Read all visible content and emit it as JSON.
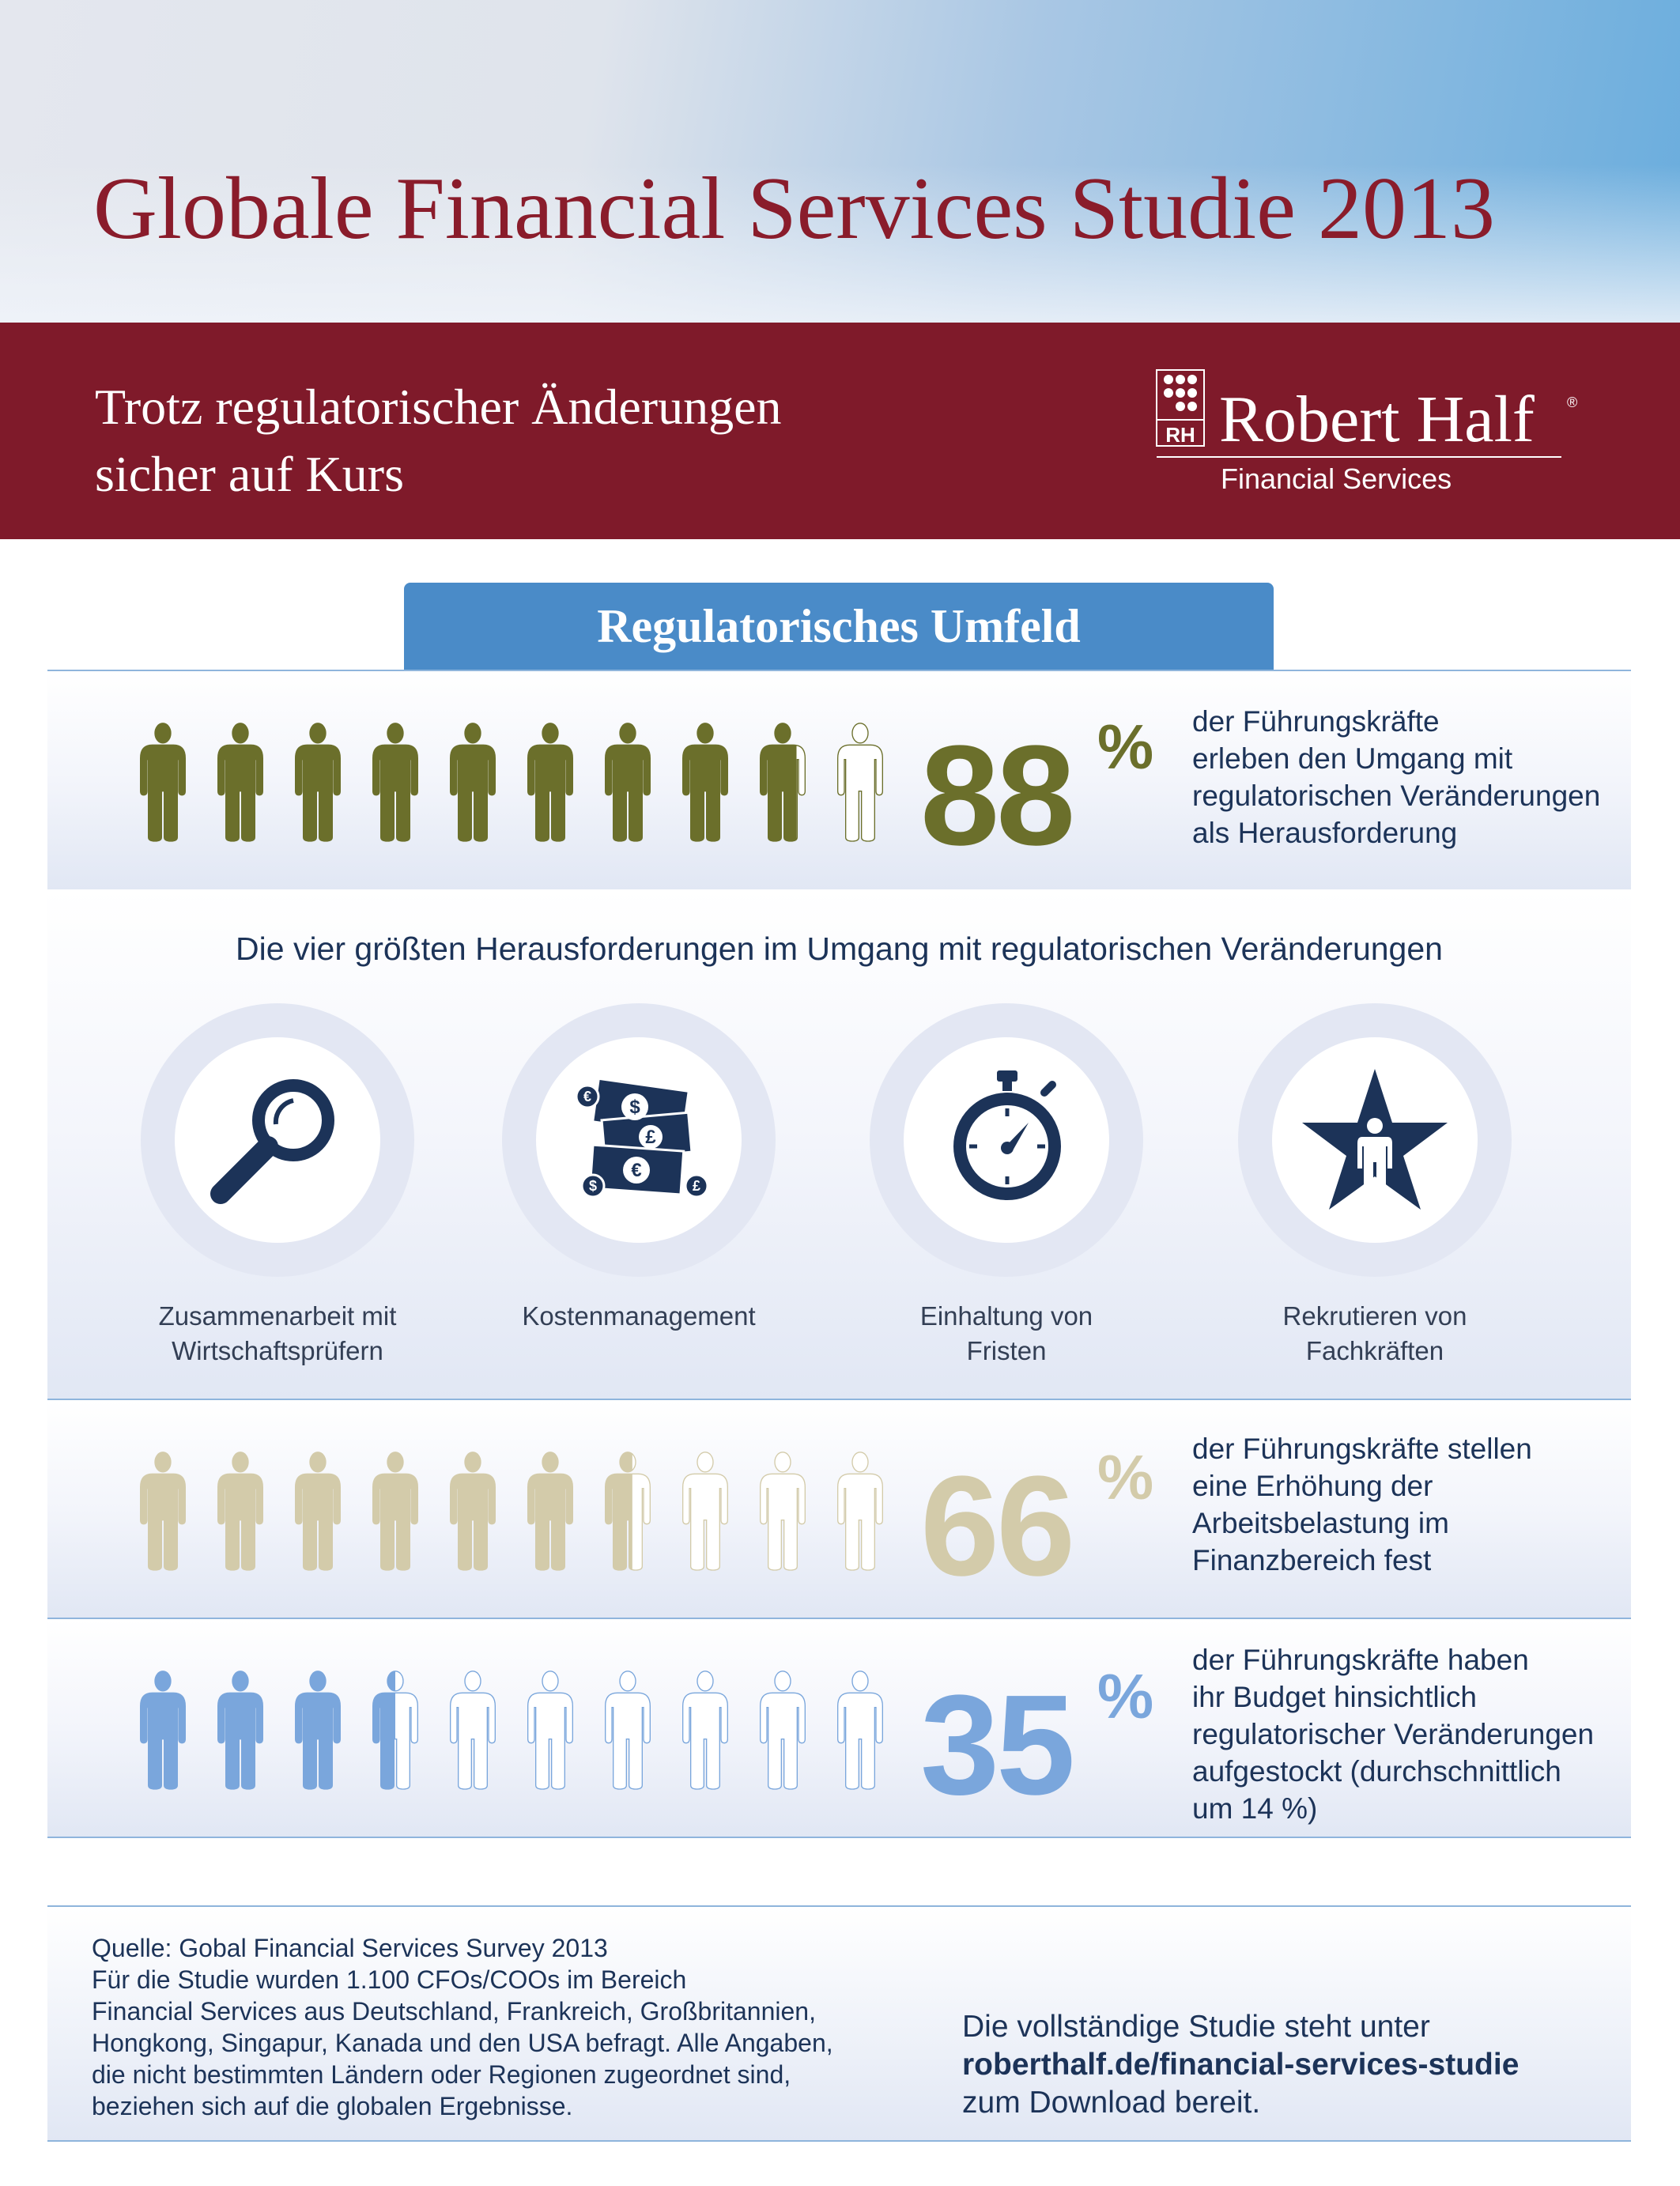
{
  "header": {
    "title": "Globale Financial Services Studie 2013",
    "subtitle_lines": [
      "Trotz regulatorischer Änderungen",
      "sicher auf  Kurs"
    ],
    "logo": {
      "monogram": "RH",
      "name": "Robert Half",
      "registered": "®",
      "division": "Financial Services"
    }
  },
  "section_tab": "Regulatorisches Umfeld",
  "colors": {
    "brand_red": "#7f1a2a",
    "title_red": "#8a1c2b",
    "tab_blue": "#4a8bc8",
    "navy": "#1c3358"
  },
  "stats": [
    {
      "value": "88",
      "unit": "%",
      "percent": 88,
      "color": "#6b6f2b",
      "text_lines": [
        "der Führungskräfte",
        "erleben den Umgang mit",
        "regulatorischen Veränderungen",
        "als Herausforderung"
      ]
    },
    {
      "value": "66",
      "unit": "%",
      "percent": 66,
      "color": "#d3cbaa",
      "text_lines": [
        "der Führungskräfte stellen",
        "eine Erhöhung der",
        "Arbeitsbelastung im",
        "Finanzbereich fest"
      ]
    },
    {
      "value": "35",
      "unit": "%",
      "percent": 35,
      "color": "#7aa6dc",
      "text_lines": [
        "der Führungskräfte haben",
        "ihr Budget hinsichtlich",
        "regulatorischer Veränderungen",
        "aufgestockt (durchschnittlich",
        "um 14 %)"
      ]
    }
  ],
  "challenges": {
    "heading": "Die vier größten Herausforderungen im Umgang mit regulatorischen Veränderungen",
    "items": [
      {
        "icon": "magnifier-icon",
        "lines": [
          "Zusammenarbeit mit",
          "Wirtschaftsprüfern"
        ]
      },
      {
        "icon": "money-icon",
        "lines": [
          "Kostenmanagement"
        ]
      },
      {
        "icon": "stopwatch-icon",
        "lines": [
          "Einhaltung von",
          "Fristen"
        ]
      },
      {
        "icon": "star-person-icon",
        "lines": [
          "Rekrutieren von",
          "Fachkräften"
        ]
      }
    ]
  },
  "footer": {
    "source_lines": [
      "Quelle: Gobal Financial Services Survey 2013",
      "Für die Studie wurden 1.100 CFOs/COOs im Bereich",
      "Financial Services aus Deutschland, Frankreich, Großbritannien,",
      "Hongkong, Singapur, Kanada und den USA befragt. Alle Angaben,",
      "die nicht bestimmten Ländern oder Regionen zugeordnet sind,",
      "beziehen sich auf die globalen Ergebnisse."
    ],
    "cta_line1": "Die vollständige Studie steht unter",
    "cta_link": "roberthalf.de/financial-services-studie",
    "cta_line3": "zum Download bereit."
  }
}
